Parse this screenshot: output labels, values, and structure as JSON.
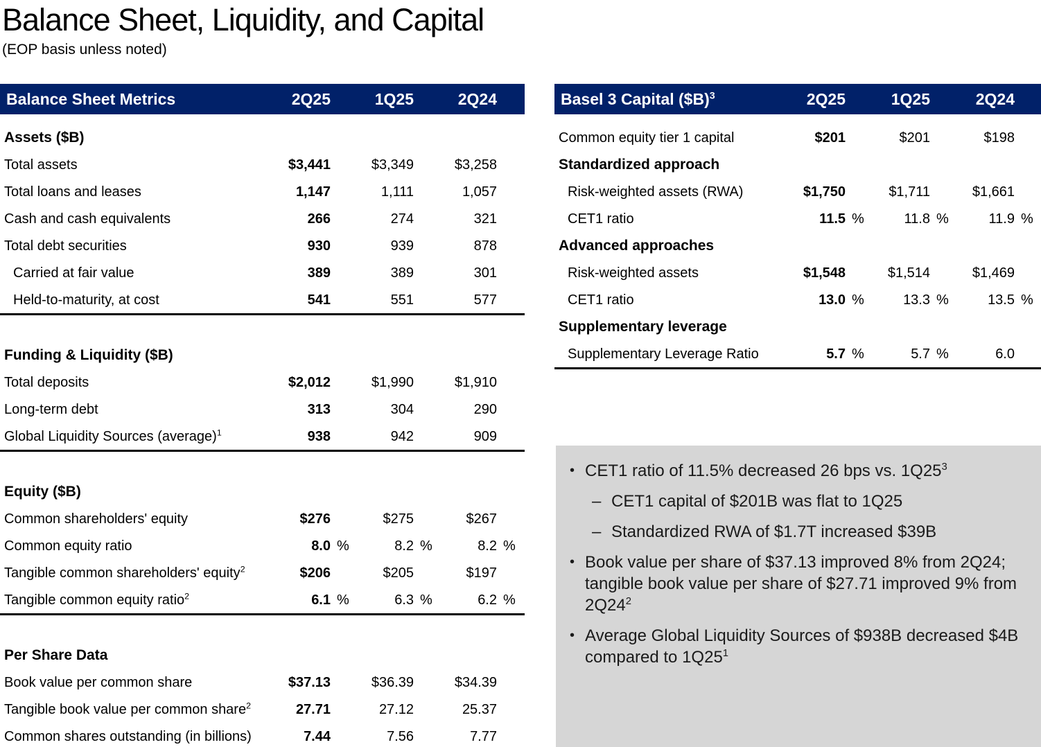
{
  "page": {
    "title": "Balance Sheet, Liquidity, and Capital",
    "subtitle": "(EOP basis unless noted)"
  },
  "colors": {
    "header_navy": "#012169",
    "callout_gray": "#D6D6D6",
    "section_border": "#000000"
  },
  "balance_sheet_table": {
    "title": "Balance Sheet Metrics",
    "title_sup": "",
    "columns": [
      "2Q25",
      "1Q25",
      "2Q24"
    ],
    "sections": [
      {
        "header": "Assets ($B)",
        "rows": [
          {
            "label": "Total assets",
            "sup": "",
            "indent": false,
            "values": [
              "$3,441",
              "$3,349",
              "$3,258"
            ],
            "pct": [
              "",
              "",
              ""
            ]
          },
          {
            "label": "Total loans and leases",
            "sup": "",
            "indent": false,
            "values": [
              "1,147",
              "1,111",
              "1,057"
            ],
            "pct": [
              "",
              "",
              ""
            ]
          },
          {
            "label": "Cash and cash equivalents",
            "sup": "",
            "indent": false,
            "values": [
              "266",
              "274",
              "321"
            ],
            "pct": [
              "",
              "",
              ""
            ]
          },
          {
            "label": "Total debt securities",
            "sup": "",
            "indent": false,
            "values": [
              "930",
              "939",
              "878"
            ],
            "pct": [
              "",
              "",
              ""
            ]
          },
          {
            "label": "Carried at fair value",
            "sup": "",
            "indent": true,
            "values": [
              "389",
              "389",
              "301"
            ],
            "pct": [
              "",
              "",
              ""
            ]
          },
          {
            "label": "Held-to-maturity, at cost",
            "sup": "",
            "indent": true,
            "values": [
              "541",
              "551",
              "577"
            ],
            "pct": [
              "",
              "",
              ""
            ]
          }
        ]
      },
      {
        "header": "Funding & Liquidity ($B)",
        "rows": [
          {
            "label": "Total deposits",
            "sup": "",
            "indent": false,
            "values": [
              "$2,012",
              "$1,990",
              "$1,910"
            ],
            "pct": [
              "",
              "",
              ""
            ]
          },
          {
            "label": "Long-term debt",
            "sup": "",
            "indent": false,
            "values": [
              "313",
              "304",
              "290"
            ],
            "pct": [
              "",
              "",
              ""
            ]
          },
          {
            "label": "Global Liquidity Sources (average)",
            "sup": "1",
            "indent": false,
            "values": [
              "938",
              "942",
              "909"
            ],
            "pct": [
              "",
              "",
              ""
            ]
          }
        ]
      },
      {
        "header": "Equity ($B)",
        "rows": [
          {
            "label": "Common shareholders' equity",
            "sup": "",
            "indent": false,
            "values": [
              "$276",
              "$275",
              "$267"
            ],
            "pct": [
              "",
              "",
              ""
            ]
          },
          {
            "label": "Common equity ratio",
            "sup": "",
            "indent": false,
            "values": [
              "8.0",
              "8.2",
              "8.2"
            ],
            "pct": [
              "%",
              "%",
              "%"
            ]
          },
          {
            "label": "Tangible common shareholders' equity",
            "sup": "2",
            "indent": false,
            "values": [
              "$206",
              "$205",
              "$197"
            ],
            "pct": [
              "",
              "",
              ""
            ]
          },
          {
            "label": "Tangible common equity ratio",
            "sup": "2",
            "indent": false,
            "values": [
              "6.1",
              "6.3",
              "6.2"
            ],
            "pct": [
              "%",
              "%",
              "%"
            ]
          }
        ]
      },
      {
        "header": "Per Share Data",
        "rows": [
          {
            "label": "Book value per common share",
            "sup": "",
            "indent": false,
            "values": [
              "$37.13",
              "$36.39",
              "$34.39"
            ],
            "pct": [
              "",
              "",
              ""
            ]
          },
          {
            "label": "Tangible book value per common share",
            "sup": "2",
            "indent": false,
            "values": [
              "27.71",
              "27.12",
              "25.37"
            ],
            "pct": [
              "",
              "",
              ""
            ]
          },
          {
            "label": "Common shares outstanding (in billions)",
            "sup": "",
            "indent": false,
            "values": [
              "7.44",
              "7.56",
              "7.77"
            ],
            "pct": [
              "",
              "",
              ""
            ]
          }
        ]
      }
    ]
  },
  "basel_table": {
    "title": "Basel 3 Capital ($B)",
    "title_sup": "3",
    "columns": [
      "2Q25",
      "1Q25",
      "2Q24"
    ],
    "sections": [
      {
        "header": "",
        "rows": [
          {
            "label": "Common equity tier 1 capital",
            "sup": "",
            "indent": false,
            "values": [
              "$201",
              "$201",
              "$198"
            ],
            "pct": [
              "",
              "",
              ""
            ]
          }
        ]
      },
      {
        "header": "Standardized approach",
        "rows": [
          {
            "label": "Risk-weighted assets (RWA)",
            "sup": "",
            "indent": true,
            "values": [
              "$1,750",
              "$1,711",
              "$1,661"
            ],
            "pct": [
              "",
              "",
              ""
            ]
          },
          {
            "label": "CET1 ratio",
            "sup": "",
            "indent": true,
            "values": [
              "11.5",
              "11.8",
              "11.9"
            ],
            "pct": [
              "%",
              "%",
              "%"
            ]
          }
        ]
      },
      {
        "header": "Advanced approaches",
        "rows": [
          {
            "label": "Risk-weighted assets",
            "sup": "",
            "indent": true,
            "values": [
              "$1,548",
              "$1,514",
              "$1,469"
            ],
            "pct": [
              "",
              "",
              ""
            ]
          },
          {
            "label": "CET1 ratio",
            "sup": "",
            "indent": true,
            "values": [
              "13.0",
              "13.3",
              "13.5"
            ],
            "pct": [
              "%",
              "%",
              "%"
            ]
          }
        ]
      },
      {
        "header": "Supplementary leverage",
        "rows": [
          {
            "label": "Supplementary Leverage Ratio",
            "sup": "",
            "indent": true,
            "values": [
              "5.7",
              "5.7",
              "6.0"
            ],
            "pct": [
              "%",
              "%",
              ""
            ]
          }
        ]
      }
    ]
  },
  "callout": {
    "bullets": [
      {
        "level": 1,
        "text": "CET1 ratio of 11.5% decreased 26 bps vs. 1Q25",
        "sup": "3"
      },
      {
        "level": 2,
        "text": "CET1 capital of $201B was flat to 1Q25",
        "sup": ""
      },
      {
        "level": 2,
        "text": "Standardized RWA of $1.7T increased $39B",
        "sup": ""
      },
      {
        "level": 1,
        "text": "Book value per share of $37.13 improved 8% from 2Q24; tangible book value per share of $27.71 improved 9% from 2Q24",
        "sup": "2"
      },
      {
        "level": 1,
        "text": "Average Global Liquidity Sources of $938B decreased $4B compared to 1Q25",
        "sup": "1"
      }
    ]
  }
}
